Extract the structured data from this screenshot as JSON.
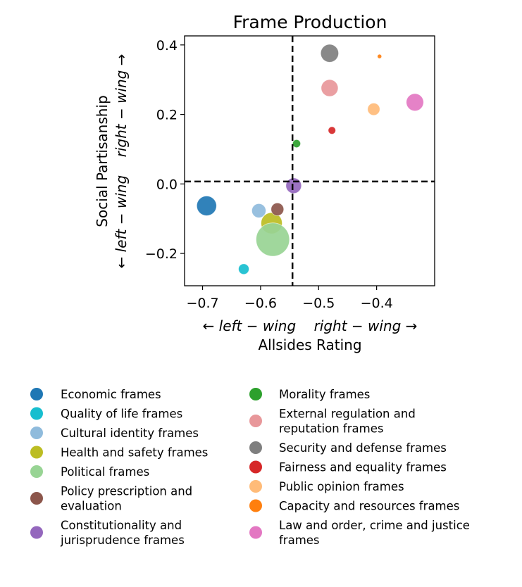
{
  "chart_data": {
    "type": "scatter",
    "title": "Frame Production",
    "xlabel": "Allsides Rating",
    "xlabel_direction": "← left − wing    right − wing →",
    "ylabel": "Social Partisanship",
    "ylabel_direction": "← left − wing    right − wing →",
    "xlim": [
      -0.731,
      -0.3
    ],
    "ylim": [
      -0.293,
      0.426
    ],
    "xticks": [
      -0.7,
      -0.6,
      -0.5,
      -0.4
    ],
    "xtick_labels": [
      "−0.7",
      "−0.6",
      "−0.5",
      "−0.4"
    ],
    "yticks": [
      0.4,
      0.2,
      0.0,
      -0.2
    ],
    "ytick_labels": [
      "0.4",
      "0.2",
      "0.0",
      "−0.2"
    ],
    "grid": false,
    "reference_lines": {
      "x": -0.545,
      "y": 0.007,
      "style": "dashed",
      "color": "#000000"
    },
    "legend_placement": "bottom",
    "series": [
      {
        "name": "Economic frames",
        "label_lines": [
          "Economic frames"
        ],
        "color": "#1f77b4",
        "x": -0.693,
        "y": -0.063,
        "size": 196
      },
      {
        "name": "Quality of life frames",
        "label_lines": [
          "Quality of life frames"
        ],
        "color": "#17becf",
        "x": -0.629,
        "y": -0.245,
        "size": 56
      },
      {
        "name": "Cultural identity frames",
        "label_lines": [
          "Cultural identity frames"
        ],
        "color": "#8fbbdc",
        "x": -0.603,
        "y": -0.077,
        "size": 100
      },
      {
        "name": "Health and safety frames",
        "label_lines": [
          "Health and safety frames"
        ],
        "color": "#bcbd22",
        "x": -0.581,
        "y": -0.113,
        "size": 225
      },
      {
        "name": "Political frames",
        "label_lines": [
          "Political frames"
        ],
        "color": "#98d494",
        "x": -0.579,
        "y": -0.16,
        "size": 560
      },
      {
        "name": "Policy prescription and evaluation",
        "label_lines": [
          "Policy prescription and",
          "evaluation"
        ],
        "color": "#8c564b",
        "x": -0.571,
        "y": -0.073,
        "size": 81
      },
      {
        "name": "Constitutionality and jurisprudence frames",
        "label_lines": [
          "Constitutionality and",
          "jurisprudence frames"
        ],
        "color": "#9467bd",
        "x": -0.543,
        "y": -0.005,
        "size": 121
      },
      {
        "name": "Morality frames",
        "label_lines": [
          "Morality frames"
        ],
        "color": "#2ca02c",
        "x": -0.538,
        "y": 0.116,
        "size": 32
      },
      {
        "name": "External regulation and reputation frames",
        "label_lines": [
          "External regulation and",
          "reputation frames"
        ],
        "color": "#e8979a",
        "x": -0.481,
        "y": 0.276,
        "size": 144
      },
      {
        "name": "Security and defense frames",
        "label_lines": [
          "Security and defense frames"
        ],
        "color": "#7f7f7f",
        "x": -0.481,
        "y": 0.376,
        "size": 161
      },
      {
        "name": "Fairness and equality frames",
        "label_lines": [
          "Fairness and equality frames"
        ],
        "color": "#d62728",
        "x": -0.477,
        "y": 0.154,
        "size": 28
      },
      {
        "name": "Public opinion frames",
        "label_lines": [
          "Public opinion frames"
        ],
        "color": "#ffbb78",
        "x": -0.405,
        "y": 0.215,
        "size": 76
      },
      {
        "name": "Capacity and resources frames",
        "label_lines": [
          "Capacity and resources frames"
        ],
        "color": "#ff7f0e",
        "x": -0.395,
        "y": 0.367,
        "size": 9
      },
      {
        "name": "Law and order, crime and justice frames",
        "label_lines": [
          "Law and order, crime and justice",
          "frames"
        ],
        "color": "#e377c2",
        "x": -0.334,
        "y": 0.235,
        "size": 151
      }
    ]
  }
}
